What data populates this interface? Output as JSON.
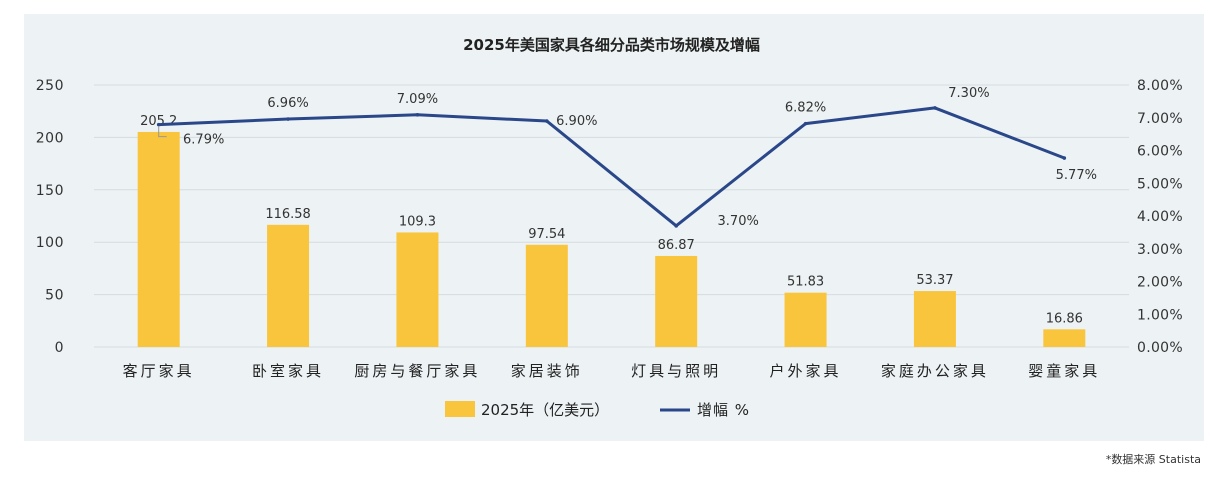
{
  "source_note": "*数据来源 Statista",
  "colors": {
    "panel_bg": "#edf2f4",
    "bar": "#f9c53c",
    "line": "#2a4789",
    "text": "#333333",
    "grid": "#d5dcdf"
  },
  "chart_data": {
    "type": "bar",
    "title": "2025年美国家具各细分品类市场规模及增幅",
    "categories": [
      "客厅家具",
      "卧室家具",
      "厨房与餐厅家具",
      "家居装饰",
      "灯具与照明",
      "户外家具",
      "家庭办公家具",
      "婴童家具"
    ],
    "series": [
      {
        "name": "2025年（亿美元）",
        "type": "bar",
        "axis": "left",
        "values": [
          205.2,
          116.58,
          109.3,
          97.54,
          86.87,
          51.83,
          53.37,
          16.86
        ],
        "labels": [
          "205.2",
          "116.58",
          "109.3",
          "97.54",
          "86.87",
          "51.83",
          "53.37",
          "16.86"
        ]
      },
      {
        "name": "增幅 %",
        "type": "line",
        "axis": "right",
        "values": [
          6.79,
          6.96,
          7.09,
          6.9,
          3.7,
          6.82,
          7.3,
          5.77
        ],
        "labels": [
          "6.79%",
          "6.96%",
          "7.09%",
          "6.90%",
          "3.70%",
          "6.82%",
          "7.30%",
          "5.77%"
        ]
      }
    ],
    "y_left": {
      "ylim": [
        0,
        250
      ],
      "ticks": [
        0,
        50,
        100,
        150,
        200,
        250
      ],
      "tick_labels": [
        "0",
        "50",
        "100",
        "150",
        "200",
        "250"
      ]
    },
    "y_right": {
      "ylim": [
        0,
        8
      ],
      "ticks": [
        0,
        1,
        2,
        3,
        4,
        5,
        6,
        7,
        8
      ],
      "tick_labels": [
        "0.00%",
        "1.00%",
        "2.00%",
        "3.00%",
        "4.00%",
        "5.00%",
        "6.00%",
        "7.00%",
        "8.00%"
      ]
    },
    "grid": true,
    "legend_position": "bottom"
  }
}
